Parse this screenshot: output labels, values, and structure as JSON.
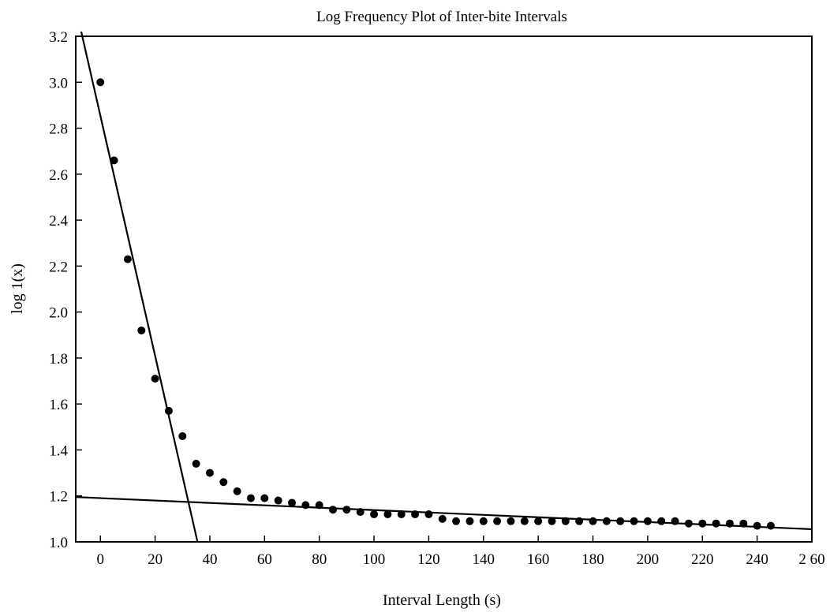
{
  "chart_data": {
    "type": "scatter",
    "title": "Log Frequency Plot of Inter-bite Intervals",
    "xlabel": "Interval Length (s)",
    "ylabel": "log 1(x)",
    "xlim": [
      -9,
      260
    ],
    "ylim": [
      1.0,
      3.2
    ],
    "x_ticks": [
      0,
      20,
      40,
      60,
      80,
      100,
      120,
      140,
      160,
      180,
      200,
      220,
      240,
      260
    ],
    "x_tick_labels": [
      "0",
      "20",
      "40",
      "60",
      "80",
      "100",
      "120",
      "140",
      "160",
      "180",
      "200",
      "220",
      "240",
      "2 60"
    ],
    "y_ticks": [
      1.0,
      1.2,
      1.4,
      1.6,
      1.8,
      2.0,
      2.2,
      2.4,
      2.6,
      2.8,
      3.0,
      3.2
    ],
    "y_tick_labels": [
      "1.0",
      "1.2",
      "1.4",
      "1.6",
      "1.8",
      "2.0",
      "2.2",
      "2.4",
      "2.6",
      "2.8",
      "3.0",
      "3.2"
    ],
    "grid": false,
    "legend": "none",
    "series": [
      {
        "points": [
          [
            0,
            3.0
          ],
          [
            5,
            2.66
          ],
          [
            10,
            2.23
          ],
          [
            15,
            1.92
          ],
          [
            20,
            1.71
          ],
          [
            25,
            1.57
          ],
          [
            30,
            1.46
          ],
          [
            35,
            1.34
          ],
          [
            40,
            1.3
          ],
          [
            45,
            1.26
          ],
          [
            50,
            1.22
          ],
          [
            55,
            1.19
          ],
          [
            60,
            1.19
          ],
          [
            65,
            1.18
          ],
          [
            70,
            1.17
          ],
          [
            75,
            1.16
          ],
          [
            80,
            1.16
          ],
          [
            85,
            1.14
          ],
          [
            90,
            1.14
          ],
          [
            95,
            1.13
          ],
          [
            100,
            1.12
          ],
          [
            105,
            1.12
          ],
          [
            110,
            1.12
          ],
          [
            115,
            1.12
          ],
          [
            120,
            1.12
          ],
          [
            125,
            1.1
          ],
          [
            130,
            1.09
          ],
          [
            135,
            1.09
          ],
          [
            140,
            1.09
          ],
          [
            145,
            1.09
          ],
          [
            150,
            1.09
          ],
          [
            155,
            1.09
          ],
          [
            160,
            1.09
          ],
          [
            165,
            1.09
          ],
          [
            170,
            1.09
          ],
          [
            175,
            1.09
          ],
          [
            180,
            1.09
          ],
          [
            185,
            1.09
          ],
          [
            190,
            1.09
          ],
          [
            195,
            1.09
          ],
          [
            200,
            1.09
          ],
          [
            205,
            1.09
          ],
          [
            210,
            1.09
          ],
          [
            215,
            1.08
          ],
          [
            220,
            1.08
          ],
          [
            225,
            1.08
          ],
          [
            230,
            1.08
          ],
          [
            235,
            1.08
          ],
          [
            240,
            1.07
          ],
          [
            245,
            1.07
          ]
        ]
      }
    ],
    "fit_lines": [
      {
        "from": [
          -7,
          3.22
        ],
        "to": [
          35.5,
          1.0
        ]
      },
      {
        "from": [
          -9,
          1.195
        ],
        "to": [
          260,
          1.055
        ]
      }
    ],
    "colors": {
      "marker": "#000000",
      "line": "#000000",
      "axis": "#000000"
    }
  }
}
